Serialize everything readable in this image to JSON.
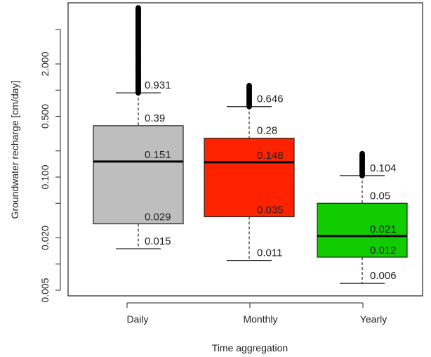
{
  "chart_data": {
    "type": "box",
    "xlabel": "Time aggregation",
    "ylabel": "Groundwater recharge [cm/day]",
    "y_scale": "log",
    "y_ticks": [
      {
        "value": 0.005,
        "label": "0.005"
      },
      {
        "value": 0.01,
        "label": ""
      },
      {
        "value": 0.02,
        "label": "0.020"
      },
      {
        "value": 0.05,
        "label": ""
      },
      {
        "value": 0.1,
        "label": "0.100"
      },
      {
        "value": 0.2,
        "label": ""
      },
      {
        "value": 0.5,
        "label": "0.500"
      },
      {
        "value": 1,
        "label": ""
      },
      {
        "value": 2,
        "label": "2.000"
      },
      {
        "value": 5,
        "label": ""
      }
    ],
    "categories": [
      "Daily",
      "Monthly",
      "Yearly"
    ],
    "boxes": [
      {
        "name": "Daily",
        "color": "#bebebe",
        "lower_whisker": 0.015,
        "q1": 0.029,
        "median": 0.151,
        "q3": 0.39,
        "upper_whisker": 0.931,
        "outlier_range": [
          0.931,
          9.0
        ],
        "labels": [
          "0.931",
          "0.39",
          "0.151",
          "0.029",
          "0.015"
        ]
      },
      {
        "name": "Monthly",
        "color": "#ff2200",
        "lower_whisker": 0.011,
        "q1": 0.035,
        "median": 0.148,
        "q3": 0.28,
        "upper_whisker": 0.646,
        "outlier_range": [
          0.646,
          1.15
        ],
        "labels": [
          "0.646",
          "0.28",
          "0.148",
          "0.035",
          "0.011"
        ]
      },
      {
        "name": "Yearly",
        "color": "#11cc00",
        "lower_whisker": 0.006,
        "q1": 0.012,
        "median": 0.021,
        "q3": 0.05,
        "upper_whisker": 0.104,
        "outlier_range": [
          0.104,
          0.19
        ],
        "labels": [
          "0.104",
          "0.05",
          "0.021",
          "0.012",
          "0.006"
        ]
      }
    ]
  }
}
